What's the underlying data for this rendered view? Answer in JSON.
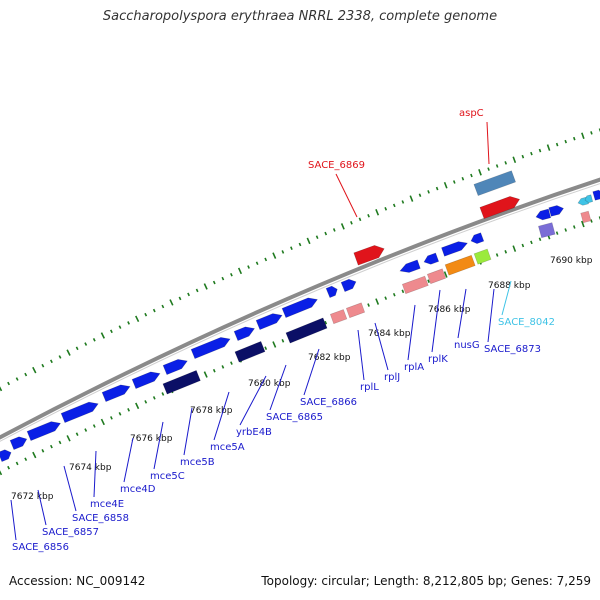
{
  "header": {
    "title": "Saccharopolyspora erythraea NRRL 2338, complete genome"
  },
  "footer": {
    "accession": "Accession: NC_009142",
    "summary": "Topology: circular; Length: 8,212,805 bp; Genes: 7,259"
  },
  "colors": {
    "cds": "#0a1fe6",
    "cds_dark": "#0b0f66",
    "cds_highlight": "#e0141b",
    "rna": "#ee8a8e",
    "steel": "#4f86b8",
    "orange": "#f28a14",
    "lime": "#9bea3c",
    "violet": "#7a6dd6",
    "cyan": "#3fc3e6",
    "backbone": "#8a8a8a",
    "tick": "#1f7a1f"
  },
  "map": {
    "ticks": [
      {
        "label": "7672 kbp"
      },
      {
        "label": "7674 kbp"
      },
      {
        "label": "7676 kbp"
      },
      {
        "label": "7678 kbp"
      },
      {
        "label": "7680 kbp"
      },
      {
        "label": "7682 kbp"
      },
      {
        "label": "7684 kbp"
      },
      {
        "label": "7686 kbp"
      },
      {
        "label": "7688 kbp"
      },
      {
        "label": "7690 kbp"
      }
    ],
    "gene_labels": [
      {
        "text": "SACE_6856",
        "color": "#1a1acc"
      },
      {
        "text": "SACE_6857",
        "color": "#1a1acc"
      },
      {
        "text": "SACE_6858",
        "color": "#1a1acc"
      },
      {
        "text": "mce4E",
        "color": "#1a1acc"
      },
      {
        "text": "mce4D",
        "color": "#1a1acc"
      },
      {
        "text": "mce5C",
        "color": "#1a1acc"
      },
      {
        "text": "mce5B",
        "color": "#1a1acc"
      },
      {
        "text": "mce5A",
        "color": "#1a1acc"
      },
      {
        "text": "yrbE4B",
        "color": "#1a1acc"
      },
      {
        "text": "SACE_6865",
        "color": "#1a1acc"
      },
      {
        "text": "SACE_6866",
        "color": "#1a1acc"
      },
      {
        "text": "rplL",
        "color": "#1a1acc"
      },
      {
        "text": "rplJ",
        "color": "#1a1acc"
      },
      {
        "text": "rplA",
        "color": "#1a1acc"
      },
      {
        "text": "rplK",
        "color": "#1a1acc"
      },
      {
        "text": "nusG",
        "color": "#1a1acc"
      },
      {
        "text": "SACE_6873",
        "color": "#1a1acc"
      },
      {
        "text": "SACE_6869",
        "color": "#e0141b"
      },
      {
        "text": "aspC",
        "color": "#e0141b"
      },
      {
        "text": "SACE_8042",
        "color": "#3fc3e6"
      }
    ]
  }
}
